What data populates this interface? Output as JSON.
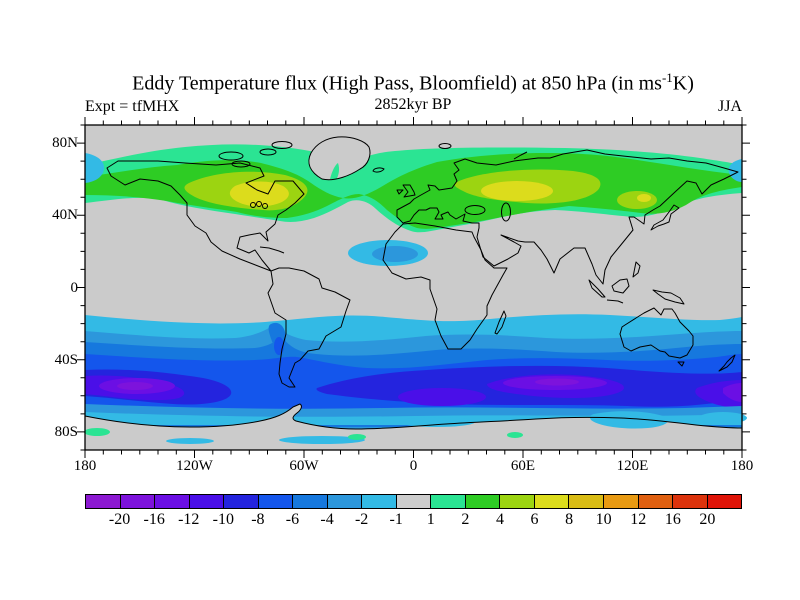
{
  "title": {
    "prefix": "Eddy Temperature flux (High Pass, Bloomfield) at 850 hPa (in ms",
    "superscript": "-1",
    "suffix": "K)"
  },
  "subtitle": "2852kyr BP",
  "experiment_label": "Expt = tfMHX",
  "season_label": "JJA",
  "axes": {
    "lat_ticks": [
      "80N",
      "40N",
      "0",
      "40S",
      "80S"
    ],
    "lon_ticks": [
      "180",
      "120W",
      "60W",
      "0",
      "60E",
      "120E",
      "180"
    ]
  },
  "colorbar": {
    "labels": [
      "-20",
      "-16",
      "-12",
      "-10",
      "-8",
      "-6",
      "-4",
      "-2",
      "-1",
      "1",
      "2",
      "4",
      "6",
      "8",
      "10",
      "12",
      "16",
      "20"
    ],
    "segment_colors": [
      "#8C19D2",
      "#7D13DC",
      "#6B0FE4",
      "#4A0FE8",
      "#2424DE",
      "#1456EC",
      "#1678DE",
      "#2C97DC",
      "#33BAE5",
      "#CDCDCD",
      "#2BE493",
      "#2ECC24",
      "#9CD411",
      "#DCDC1C",
      "#D9BC15",
      "#E89A12",
      "#E06010",
      "#DC330C",
      "#E01408"
    ]
  },
  "palette": {
    "n20": "#7D13DC",
    "n16": "#6B0FE4",
    "n12": "#4A0FE8",
    "n10": "#2424DE",
    "n8": "#1456EC",
    "n6": "#1678DE",
    "n4": "#2C97DC",
    "n2": "#33BAE5",
    "zero": "#CBCBCB",
    "p1": "#2BE493",
    "p2": "#2ECC24",
    "p4": "#9CD411",
    "p6": "#DCDC1C"
  },
  "map": {
    "background": "#CBCBCB",
    "coastline_color": "#000000",
    "frame_color": "#000000"
  },
  "chart_data": {
    "type": "heatmap",
    "subtype": "filled-contour world map",
    "title": "Eddy Temperature flux (High Pass, Bloomfield) at 850 hPa (in ms-1K)",
    "time_label": "2852kyr BP",
    "experiment": "tfMHX",
    "season": "JJA",
    "units": "ms-1K",
    "projection": "equirectangular, 180W-180E, 90S-90N",
    "contour_levels": [
      -20,
      -16,
      -12,
      -10,
      -8,
      -6,
      -4,
      -2,
      -1,
      1,
      2,
      4,
      6,
      8,
      10,
      12,
      16,
      20
    ],
    "lat_axis": {
      "tick_labels": [
        "80N",
        "40N",
        "0",
        "40S",
        "80S"
      ],
      "minor_interval_deg": 10
    },
    "lon_axis": {
      "tick_labels": [
        "180",
        "120W",
        "60W",
        "0",
        "60E",
        "120E",
        "180"
      ],
      "minor_interval_deg": 10
    },
    "legend_position": "bottom horizontal colorbar",
    "features": [
      "Positive band (1 to 8) across northern mid-latitudes ~35N-78N spanning all longitudes",
      "Maxima 6-8 over eastern Canada (~95W-65W, 45-58N) and western Russia/Kazakhstan (~40E-75E, 48-59N), small 6-8 spot near 122E 48N",
      "Weak negative patch (-4 to -1) over West Africa / eastern tropical Atlantic (~35W-8E, 12-26N)",
      "Broad negative band (-1 to below -16) across southern mid-latitudes ~15S-70S",
      "Strong minima below -12 near 50-60S over South Pacific (180W-115W and 160E-180) and South Indian Ocean (45E-110E), and south of Africa (10W-35E)",
      "Negative tongue along the Andes reaching ~20S",
      "Near-zero (gray, -1 to 1) over the tropics, continental interiors, Arctic (>78N) and Antarctic interior",
      "Small positive (1-2) spots near the Antarctic coast around 172W and 30E-50E"
    ]
  }
}
